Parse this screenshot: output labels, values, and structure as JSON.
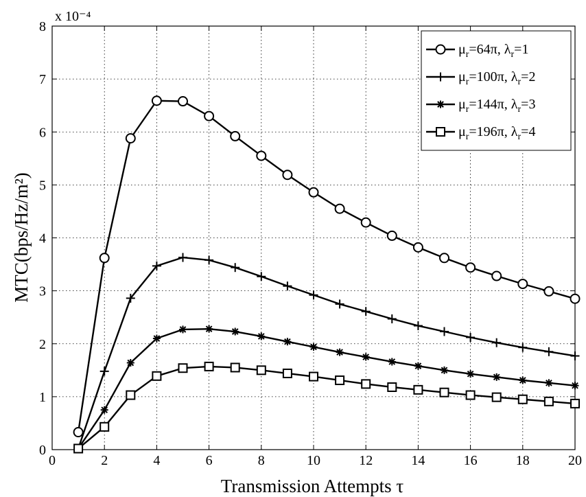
{
  "chart_data": {
    "type": "line",
    "xlabel": "Transmission Attempts τ",
    "ylabel": "MTC(bps/Hz/m²)",
    "y_multiplier": "x 10⁻⁴",
    "xlim": [
      0,
      20
    ],
    "ylim": [
      0,
      8
    ],
    "xticks": [
      0,
      2,
      4,
      6,
      8,
      10,
      12,
      14,
      16,
      18,
      20
    ],
    "yticks": [
      0,
      1,
      2,
      3,
      4,
      5,
      6,
      7,
      8
    ],
    "grid": true,
    "legend_position": "top-right",
    "x": [
      1,
      2,
      3,
      4,
      5,
      6,
      7,
      8,
      9,
      10,
      11,
      12,
      13,
      14,
      15,
      16,
      17,
      18,
      19,
      20
    ],
    "series": [
      {
        "name": "μr=64π, λr=1",
        "legend": {
          "mu_base": "μ",
          "mu_val": "=64π, ",
          "lam_base": "λ",
          "lam_val": "=1"
        },
        "marker": "circle",
        "color": "#000000",
        "values": [
          0.33,
          3.62,
          5.88,
          6.59,
          6.58,
          6.3,
          5.92,
          5.55,
          5.19,
          4.86,
          4.55,
          4.29,
          4.04,
          3.82,
          3.62,
          3.44,
          3.28,
          3.13,
          2.99,
          2.85
        ]
      },
      {
        "name": "μr=100π, λr=2",
        "legend": {
          "mu_base": "μ",
          "mu_val": "=100π, ",
          "lam_base": "λ",
          "lam_val": "=2"
        },
        "marker": "plus",
        "color": "#000000",
        "values": [
          0.02,
          1.48,
          2.86,
          3.47,
          3.63,
          3.58,
          3.44,
          3.27,
          3.09,
          2.92,
          2.75,
          2.61,
          2.47,
          2.34,
          2.23,
          2.12,
          2.02,
          1.93,
          1.85,
          1.77
        ]
      },
      {
        "name": "μr=144π, λr=3",
        "legend": {
          "mu_base": "μ",
          "mu_val": "=144π, ",
          "lam_base": "λ",
          "lam_val": "=3"
        },
        "marker": "star",
        "color": "#000000",
        "values": [
          0.02,
          0.75,
          1.64,
          2.1,
          2.27,
          2.28,
          2.23,
          2.14,
          2.04,
          1.94,
          1.84,
          1.75,
          1.66,
          1.58,
          1.5,
          1.43,
          1.37,
          1.31,
          1.26,
          1.21
        ]
      },
      {
        "name": "μr=196π, λr=4",
        "legend": {
          "mu_base": "μ",
          "mu_val": "=196π, ",
          "lam_base": "λ",
          "lam_val": "=4"
        },
        "marker": "square",
        "color": "#000000",
        "values": [
          0.02,
          0.43,
          1.03,
          1.39,
          1.54,
          1.57,
          1.55,
          1.5,
          1.44,
          1.38,
          1.31,
          1.24,
          1.18,
          1.13,
          1.08,
          1.03,
          0.99,
          0.95,
          0.91,
          0.87
        ]
      }
    ]
  }
}
